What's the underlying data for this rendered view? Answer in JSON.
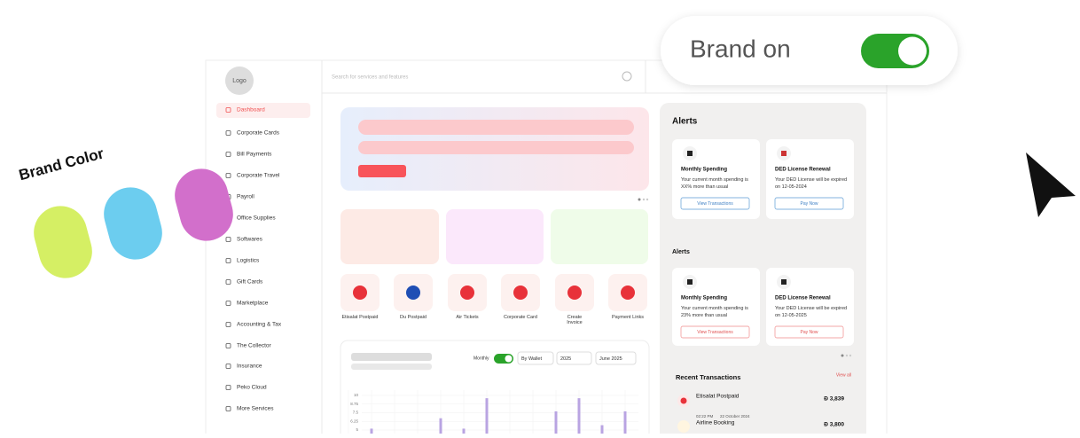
{
  "brand_toggle": {
    "label": "Brand on"
  },
  "brand_color": {
    "label": "Brand Color"
  },
  "logo": "Logo",
  "search_placeholder": "Search for services and features",
  "sidebar": [
    "Dashboard",
    "Corporate Cards",
    "Bill Payments",
    "Corporate Travel",
    "Payroll",
    "Office Supplies",
    "Softwares",
    "Logistics",
    "Gift Cards",
    "Marketplace",
    "Accounting & Tax",
    "The Collector",
    "Insurance",
    "Peko Cloud",
    "More Services"
  ],
  "quick_actions": [
    "Etisalat Postpaid",
    "Du Postpaid",
    "Air Tickets",
    "Corporate Card",
    "Create Invoice",
    "Payment Links"
  ],
  "chart_controls": {
    "period": "Monthly",
    "wallet": "By Wallet",
    "year": "2025",
    "month": "June 2025"
  },
  "chart_data": {
    "type": "bar",
    "values": [
      null,
      5.2,
      null,
      null,
      6.7,
      5.2,
      9.6,
      null,
      null,
      7.7,
      9.6,
      5.7,
      7.7
    ],
    "color": "#b9a4e2",
    "ylim": [
      5,
      10
    ],
    "yticks": [
      10,
      8.75,
      7.5,
      6.25,
      5
    ],
    "grid": true
  },
  "alerts": [
    {
      "title": "Alerts",
      "cards": [
        {
          "title": "Monthly Spending",
          "text": "Your current month spending is XX% more than usual",
          "button": "View Transactions"
        },
        {
          "title": "DED License Renewal",
          "text": "Your DED License  will be expired on 12-05-2024",
          "button": "Pay Now"
        }
      ]
    },
    {
      "title": "Alerts",
      "cards": [
        {
          "title": "Monthly Spending",
          "text": "Your current month spending is 23% more than usual",
          "button": "View Transactions"
        },
        {
          "title": "DED License Renewal",
          "text": "Your DED License  will be expired on 12-05-2025",
          "button": "Pay Now"
        }
      ]
    }
  ],
  "recent": {
    "title": "Recent Transactions",
    "view_all": "View all",
    "items": [
      {
        "name": "Etisalat Postpaid",
        "amount": "Ð 3,839"
      },
      {
        "time": "02:22 PM",
        "date": "22 October 2024",
        "name": "Airline Booking",
        "amount": "Ð 3,800"
      }
    ]
  }
}
